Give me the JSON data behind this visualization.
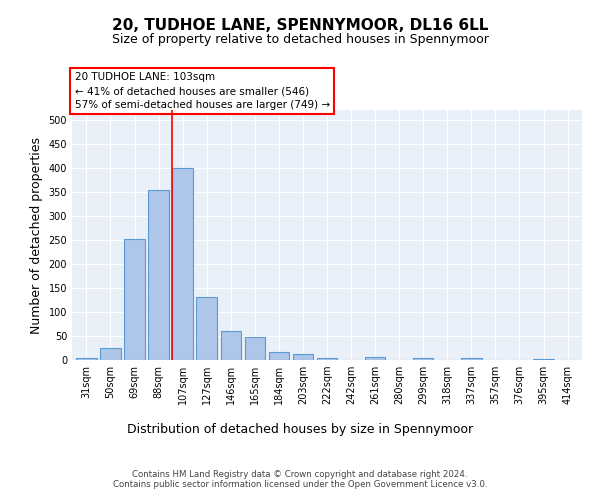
{
  "title_line1": "20, TUDHOE LANE, SPENNYMOOR, DL16 6LL",
  "title_line2": "Size of property relative to detached houses in Spennymoor",
  "xlabel": "Distribution of detached houses by size in Spennymoor",
  "ylabel": "Number of detached properties",
  "categories": [
    "31sqm",
    "50sqm",
    "69sqm",
    "88sqm",
    "107sqm",
    "127sqm",
    "146sqm",
    "165sqm",
    "184sqm",
    "203sqm",
    "222sqm",
    "242sqm",
    "261sqm",
    "280sqm",
    "299sqm",
    "318sqm",
    "337sqm",
    "357sqm",
    "376sqm",
    "395sqm",
    "414sqm"
  ],
  "values": [
    5,
    25,
    252,
    354,
    400,
    131,
    60,
    48,
    16,
    12,
    4,
    0,
    6,
    0,
    4,
    0,
    4,
    0,
    0,
    2,
    0
  ],
  "bar_color": "#aec6e8",
  "bar_edge_color": "#5b9bd5",
  "vline_color": "red",
  "vline_x_index": 4,
  "annotation_text": "20 TUDHOE LANE: 103sqm\n← 41% of detached houses are smaller (546)\n57% of semi-detached houses are larger (749) →",
  "annotation_box_color": "white",
  "annotation_box_edge_color": "red",
  "ylim": [
    0,
    520
  ],
  "yticks": [
    0,
    50,
    100,
    150,
    200,
    250,
    300,
    350,
    400,
    450,
    500
  ],
  "footer_text": "Contains HM Land Registry data © Crown copyright and database right 2024.\nContains public sector information licensed under the Open Government Licence v3.0.",
  "bg_color": "#eaf0f8",
  "grid_color": "#ffffff",
  "title_fontsize": 11,
  "subtitle_fontsize": 9,
  "axis_label_fontsize": 9,
  "tick_fontsize": 7,
  "ylabel_fontsize": 9
}
